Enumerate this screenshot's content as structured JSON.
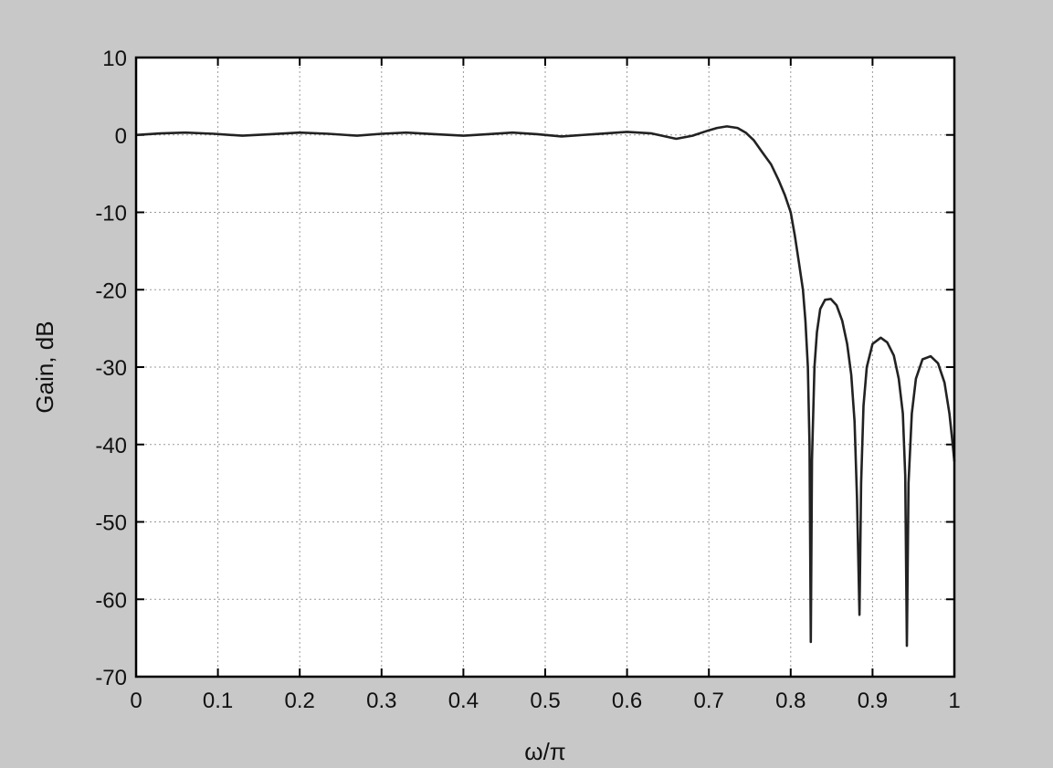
{
  "chart_data": {
    "type": "line",
    "title": "",
    "xlabel": "ω/π",
    "ylabel": "Gain, dB",
    "xlim": [
      0,
      1
    ],
    "ylim": [
      -70,
      10
    ],
    "grid": true,
    "x_ticks": [
      "0",
      "0.1",
      "0.2",
      "0.3",
      "0.4",
      "0.5",
      "0.6",
      "0.7",
      "0.8",
      "0.9",
      "1"
    ],
    "y_ticks": [
      "10",
      "0",
      "-10",
      "-20",
      "-30",
      "-40",
      "-50",
      "-60",
      "-70"
    ],
    "line_color": "#222222",
    "background_color": "#c8c8c8",
    "series": [
      {
        "x": [
          0,
          0.03,
          0.06,
          0.095,
          0.13,
          0.165,
          0.2,
          0.235,
          0.27,
          0.3,
          0.33,
          0.365,
          0.4,
          0.43,
          0.46,
          0.49,
          0.52,
          0.56,
          0.6,
          0.63,
          0.66,
          0.68,
          0.7,
          0.71,
          0.722,
          0.735,
          0.745,
          0.755,
          0.765,
          0.776,
          0.785,
          0.793,
          0.8,
          0.805,
          0.81,
          0.815,
          0.818,
          0.821,
          0.823,
          0.8245,
          0.826,
          0.829,
          0.832,
          0.836,
          0.842,
          0.849,
          0.856,
          0.863,
          0.869,
          0.874,
          0.878,
          0.881,
          0.884,
          0.886,
          0.889,
          0.893,
          0.9,
          0.91,
          0.918,
          0.926,
          0.932,
          0.937,
          0.94,
          0.942,
          0.944,
          0.948,
          0.953,
          0.961,
          0.971,
          0.98,
          0.988,
          0.994,
          0.998,
          1.0
        ],
        "y": [
          0,
          0.2,
          0.3,
          0.15,
          -0.1,
          0.1,
          0.3,
          0.15,
          -0.1,
          0.15,
          0.3,
          0.1,
          -0.1,
          0.1,
          0.3,
          0.1,
          -0.2,
          0.1,
          0.4,
          0.2,
          -0.5,
          -0.1,
          0.6,
          0.9,
          1.1,
          0.9,
          0.3,
          -0.7,
          -2.2,
          -3.8,
          -5.8,
          -7.8,
          -10,
          -13,
          -16.5,
          -20,
          -24,
          -30,
          -40,
          -65.5,
          -42,
          -30,
          -25.5,
          -22.5,
          -21.3,
          -21.2,
          -22,
          -24,
          -27,
          -31,
          -37,
          -47,
          -62,
          -45,
          -35,
          -30,
          -27,
          -26.2,
          -26.8,
          -28.5,
          -31.5,
          -36,
          -44,
          -66,
          -45,
          -36,
          -31.5,
          -29,
          -28.6,
          -29.5,
          -32,
          -36,
          -40,
          -42.2
        ]
      }
    ]
  }
}
